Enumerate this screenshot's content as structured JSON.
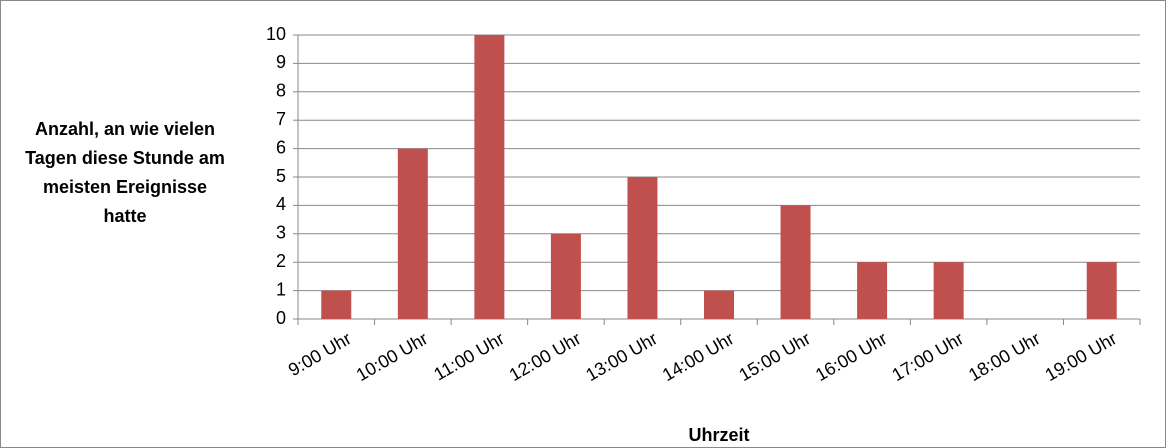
{
  "chart_data": {
    "type": "bar",
    "y_label": "Anzahl, an wie vielen Tagen diese Stunde am meisten Ereignisse hatte",
    "x_label": "Uhrzeit",
    "categories": [
      "9:00 Uhr",
      "10:00 Uhr",
      "11:00 Uhr",
      "12:00 Uhr",
      "13:00 Uhr",
      "14:00 Uhr",
      "15:00 Uhr",
      "16:00 Uhr",
      "17:00 Uhr",
      "18:00 Uhr",
      "19:00 Uhr"
    ],
    "values": [
      1,
      6,
      10,
      3,
      5,
      1,
      4,
      2,
      2,
      0,
      2
    ],
    "color": "#c0504d",
    "ylim": [
      0,
      10
    ],
    "yticks": [
      0,
      1,
      2,
      3,
      4,
      5,
      6,
      7,
      8,
      9,
      10
    ],
    "grid": true
  }
}
